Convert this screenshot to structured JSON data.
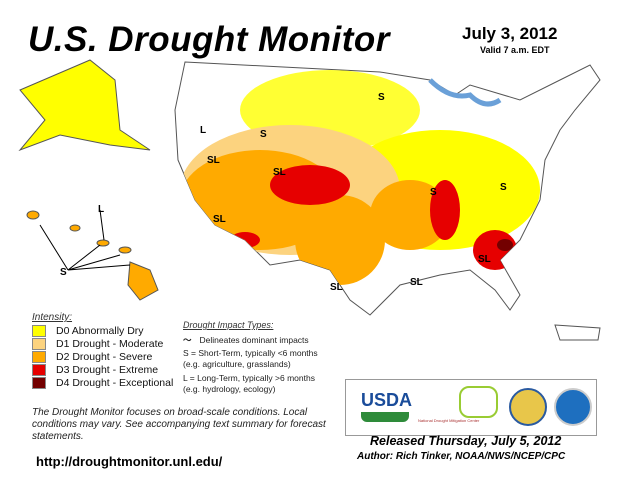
{
  "header": {
    "title": "U.S. Drought Monitor",
    "date": "July 3, 2012",
    "valid": "Valid 7 a.m. EDT"
  },
  "legend": {
    "title": "Intensity:",
    "items": [
      {
        "label": "D0 Abnormally Dry",
        "color": "#FFFF00"
      },
      {
        "label": "D1 Drought - Moderate",
        "color": "#FCD37F"
      },
      {
        "label": "D2 Drought - Severe",
        "color": "#FFAA00"
      },
      {
        "label": "D3 Drought - Extreme",
        "color": "#E60000"
      },
      {
        "label": "D4 Drought - Exceptional",
        "color": "#730000"
      }
    ]
  },
  "impact": {
    "title": "Drought Impact Types:",
    "line": "Delineates dominant impacts",
    "s": "S = Short-Term, typically <6 months",
    "s_eg": "(e.g. agriculture, grasslands)",
    "l": "L = Long-Term, typically >6 months",
    "l_eg": "(e.g. hydrology, ecology)"
  },
  "note": "The Drought Monitor focuses on broad-scale conditions. Local conditions may vary. See accompanying text summary for forecast statements.",
  "url": "http://droughtmonitor.unl.edu/",
  "logos": {
    "usda": "USDA",
    "ndmc": "National Drought Mitigation Center",
    "noaa": "NOAA"
  },
  "footer": {
    "released": "Released Thursday, July 5, 2012",
    "author": "Author: Rich Tinker, NOAA/NWS/NCEP/CPC"
  },
  "map_labels": {
    "s": "S",
    "l": "L",
    "sl": "SL"
  }
}
